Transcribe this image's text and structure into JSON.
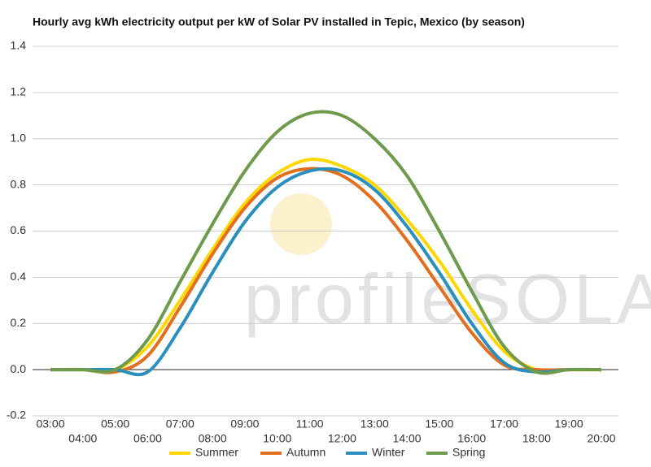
{
  "chart_data": {
    "type": "line",
    "title": "Hourly avg kWh electricity output per kW of Solar PV installed in Tepic, Mexico (by season)",
    "watermark": "profileSOLAR.com",
    "categories": [
      "03:00",
      "04:00",
      "05:00",
      "06:00",
      "07:00",
      "08:00",
      "09:00",
      "10:00",
      "11:00",
      "12:00",
      "13:00",
      "14:00",
      "15:00",
      "16:00",
      "17:00",
      "18:00",
      "19:00",
      "20:00"
    ],
    "series": [
      {
        "name": "Summer",
        "color": "#ffd700",
        "values": [
          0,
          0,
          0,
          0.1,
          0.3,
          0.52,
          0.72,
          0.85,
          0.91,
          0.88,
          0.8,
          0.65,
          0.47,
          0.26,
          0.08,
          0,
          0,
          0
        ]
      },
      {
        "name": "Autumn",
        "color": "#e36f1e",
        "values": [
          0,
          0,
          -0.01,
          0.06,
          0.27,
          0.5,
          0.7,
          0.83,
          0.87,
          0.84,
          0.73,
          0.56,
          0.36,
          0.16,
          0.02,
          0,
          0,
          0
        ]
      },
      {
        "name": "Winter",
        "color": "#2a8fbd",
        "values": [
          0,
          0,
          0,
          -0.01,
          0.18,
          0.42,
          0.64,
          0.79,
          0.86,
          0.86,
          0.78,
          0.62,
          0.42,
          0.2,
          0.03,
          -0.01,
          0,
          0
        ]
      },
      {
        "name": "Spring",
        "color": "#6d9a4b",
        "values": [
          0,
          0,
          0,
          0.13,
          0.38,
          0.63,
          0.86,
          1.03,
          1.11,
          1.1,
          1.0,
          0.84,
          0.6,
          0.34,
          0.1,
          -0.01,
          0,
          0
        ]
      }
    ],
    "ylim": [
      -0.2,
      1.4
    ],
    "yticks": [
      -0.2,
      {
        "value": 0,
        "label": "0.0"
      },
      0.2,
      0.4,
      0.6,
      0.8,
      {
        "value": 1,
        "label": "1.0"
      },
      1.2,
      1.4
    ],
    "grid": true
  }
}
